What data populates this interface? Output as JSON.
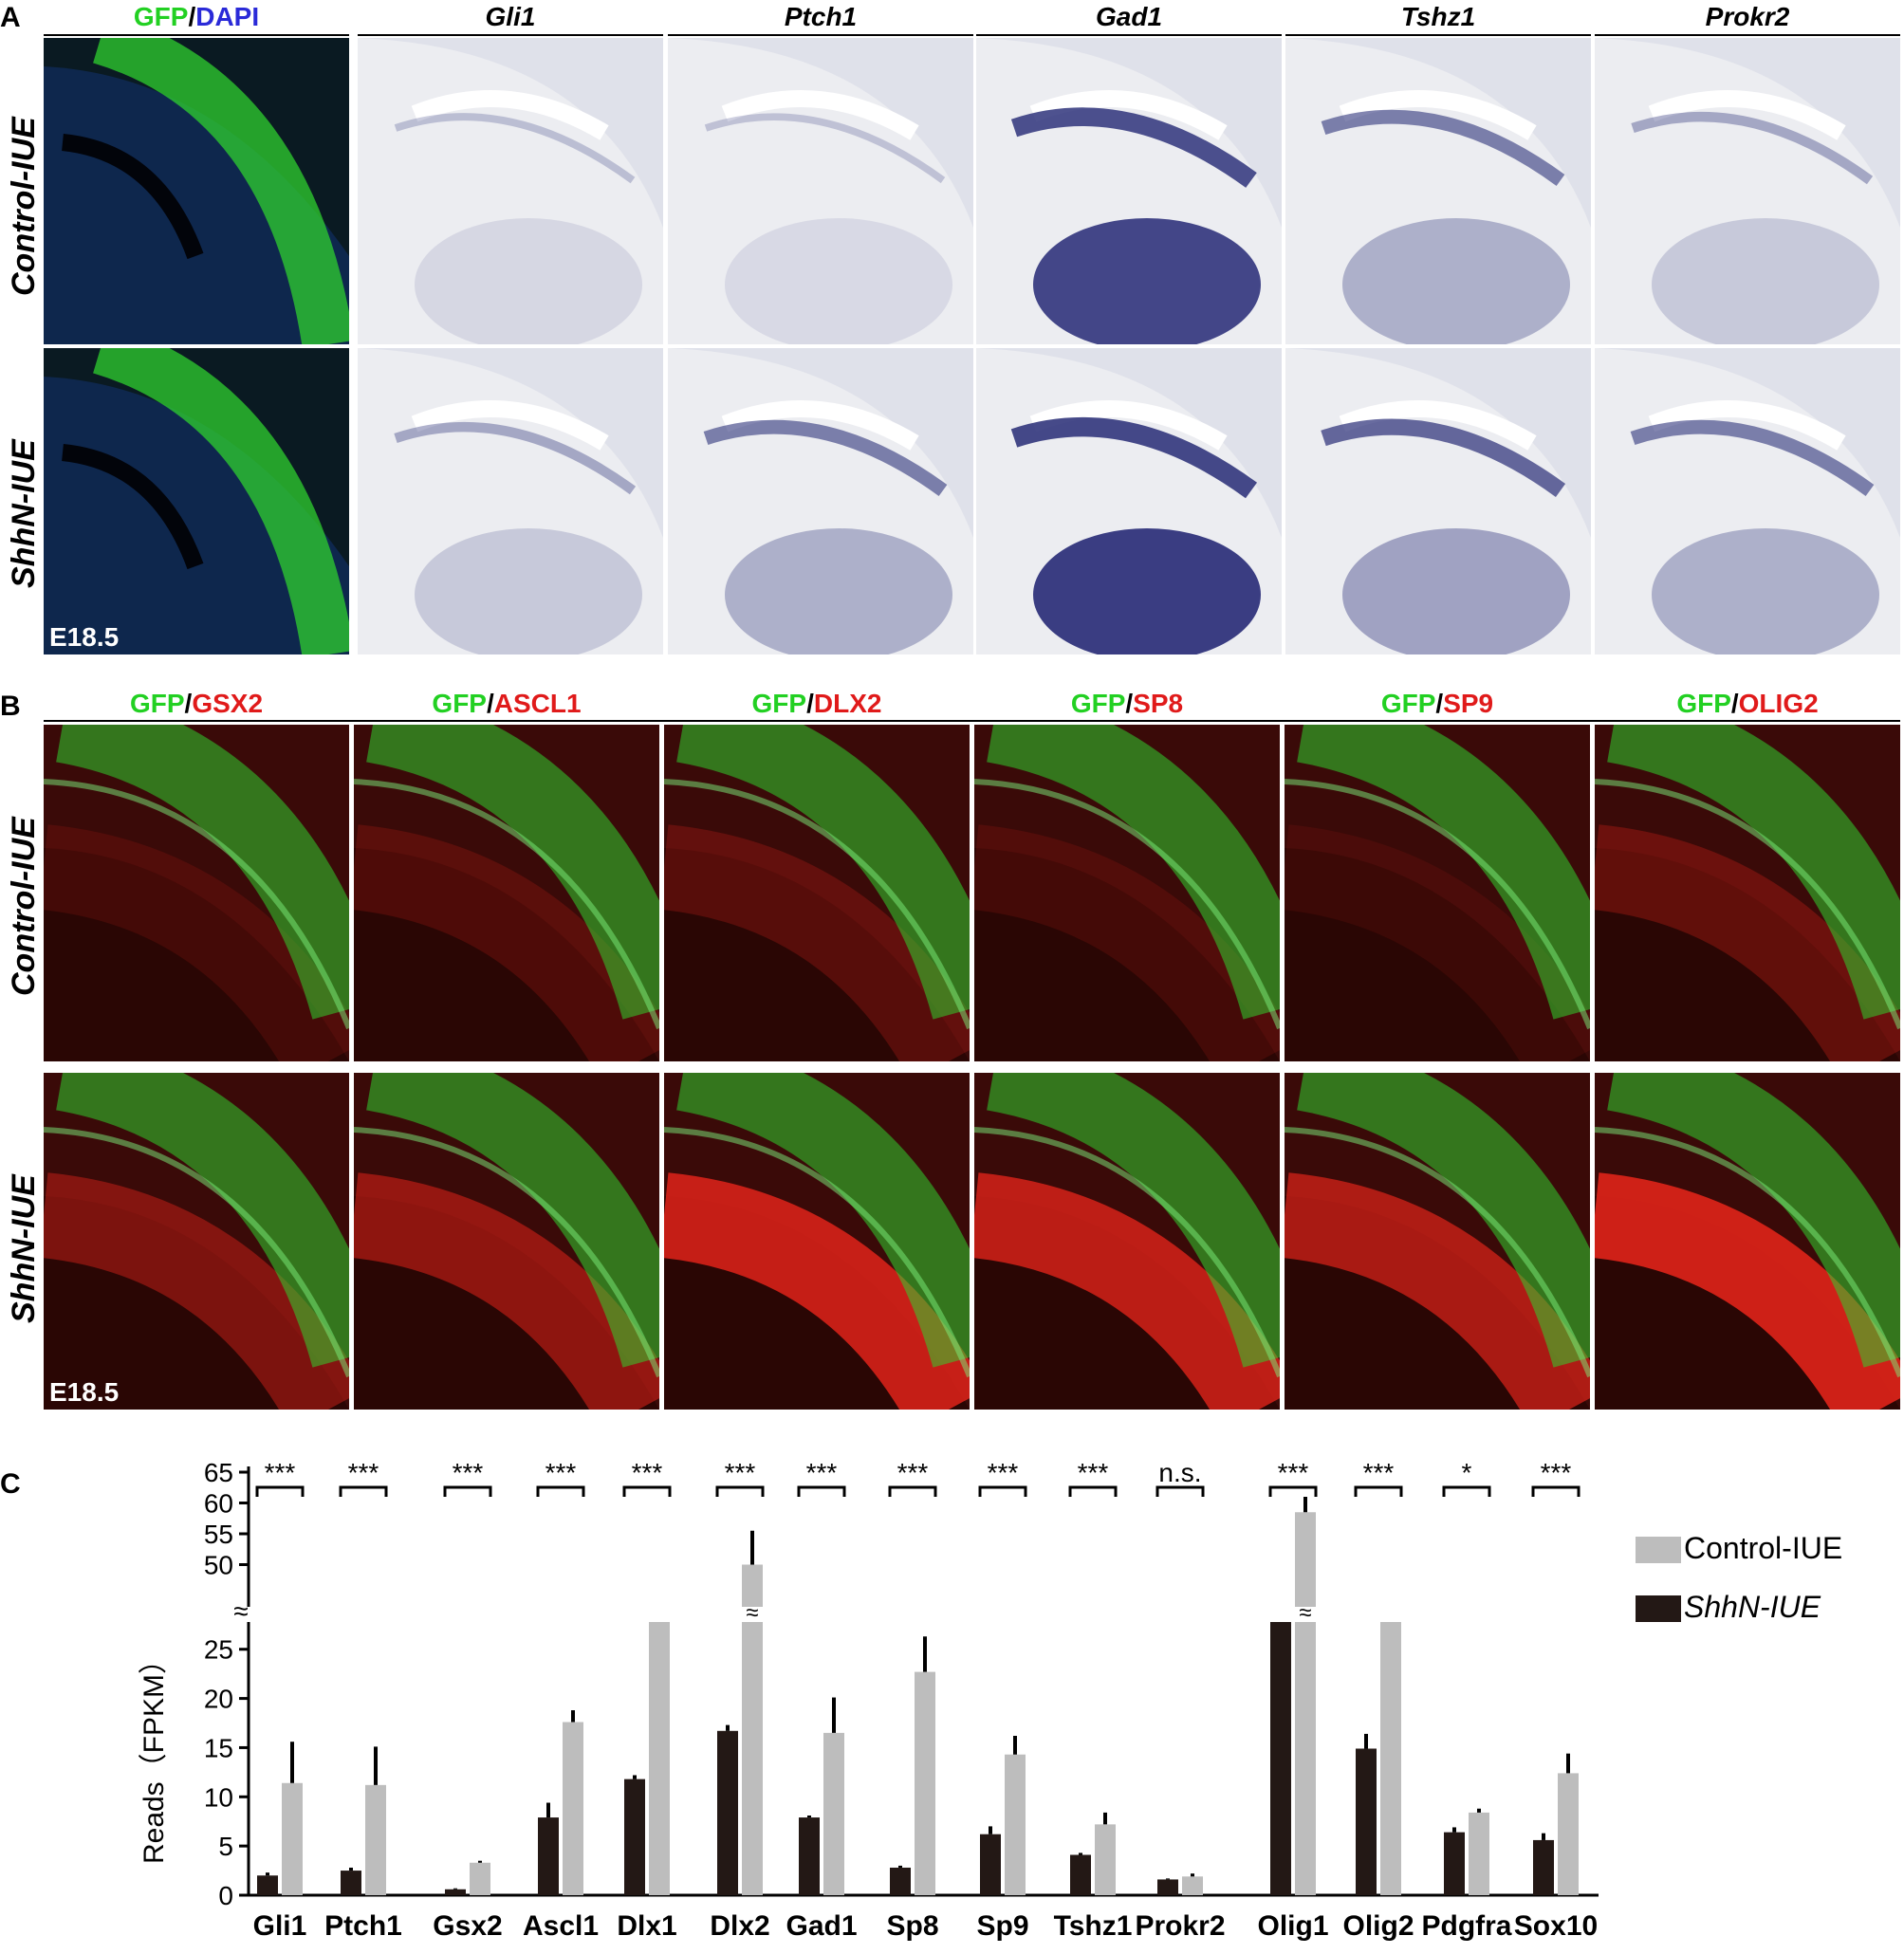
{
  "figure": {
    "panel_a": {
      "letter": "A",
      "first_header": {
        "gfp": "GFP",
        "slash": "/",
        "dapi": "DAPI"
      },
      "columns": [
        "Gli1",
        "Ptch1",
        "Gad1",
        "Tshz1",
        "Prokr2"
      ],
      "rows": [
        "Control-IUE",
        "ShhN-IUE"
      ],
      "stage": "E18.5"
    },
    "panel_b": {
      "letter": "B",
      "columns": [
        {
          "gfp": "GFP",
          "slash": "/",
          "marker": "GSX2"
        },
        {
          "gfp": "GFP",
          "slash": "/",
          "marker": "ASCL1"
        },
        {
          "gfp": "GFP",
          "slash": "/",
          "marker": "DLX2"
        },
        {
          "gfp": "GFP",
          "slash": "/",
          "marker": "SP8"
        },
        {
          "gfp": "GFP",
          "slash": "/",
          "marker": "SP9"
        },
        {
          "gfp": "GFP",
          "slash": "/",
          "marker": "OLIG2"
        }
      ],
      "rows": [
        "Control-IUE",
        "ShhN-IUE"
      ],
      "stage": "E18.5"
    },
    "panel_c": {
      "letter": "C"
    }
  },
  "colors": {
    "gfp_green": "#22d022",
    "dapi_blue": "#2a2ad8",
    "marker_red": "#e01a1a",
    "control_bar": "#bdbdbd",
    "shhn_bar": "#231815"
  },
  "chart_data": {
    "type": "bar",
    "ylabel": "Reads（FPKM）",
    "categories": [
      "Gli1",
      "Ptch1",
      "Gsx2",
      "Ascl1",
      "Dlx1",
      "Dlx2",
      "Gad1",
      "Sp8",
      "Sp9",
      "Tshz1",
      "Prokr2",
      "Olig1",
      "Olig2",
      "Pdgfra",
      "Sox10"
    ],
    "y_axis_lower": {
      "range": [
        0,
        27
      ],
      "ticks": [
        0,
        5,
        10,
        15,
        20,
        25
      ]
    },
    "y_axis_upper": {
      "range": [
        45,
        65
      ],
      "ticks": [
        50,
        55,
        60,
        65
      ]
    },
    "axis_break": true,
    "series": [
      {
        "name": "ShhN-IUE",
        "values": [
          2.0,
          2.5,
          0.6,
          7.9,
          11.8,
          16.7,
          7.9,
          2.8,
          6.2,
          4.1,
          1.6,
          27,
          14.9,
          6.4,
          5.6
        ],
        "errors": [
          0.3,
          0.3,
          0.1,
          1.5,
          0.4,
          0.6,
          0.2,
          0.2,
          0.8,
          0.2,
          0.1,
          0,
          1.5,
          0.5,
          0.7
        ],
        "clipped": [
          false,
          false,
          false,
          false,
          false,
          false,
          false,
          false,
          false,
          false,
          false,
          true,
          false,
          false,
          false
        ]
      },
      {
        "name": "Control-IUE",
        "values": [
          11.4,
          11.2,
          3.3,
          17.6,
          27,
          50,
          16.5,
          22.7,
          14.3,
          7.2,
          1.9,
          58.5,
          27,
          8.4,
          12.4
        ],
        "errors": [
          4.2,
          3.9,
          0.2,
          1.2,
          0,
          5.5,
          3.6,
          3.6,
          1.9,
          1.2,
          0.3,
          2.5,
          0,
          0.4,
          2.0
        ],
        "clipped": [
          false,
          false,
          false,
          false,
          true,
          false,
          false,
          false,
          false,
          false,
          false,
          false,
          true,
          false,
          false
        ],
        "broken": [
          false,
          false,
          false,
          false,
          false,
          true,
          false,
          false,
          false,
          false,
          false,
          true,
          false,
          false,
          false
        ]
      }
    ],
    "significance": [
      "***",
      "***",
      "***",
      "***",
      "***",
      "***",
      "***",
      "***",
      "***",
      "***",
      "n.s.",
      "***",
      "***",
      "*",
      "***"
    ],
    "legend": {
      "position": "right",
      "entries": [
        "Control-IUE",
        "ShhN-IUE"
      ]
    }
  }
}
